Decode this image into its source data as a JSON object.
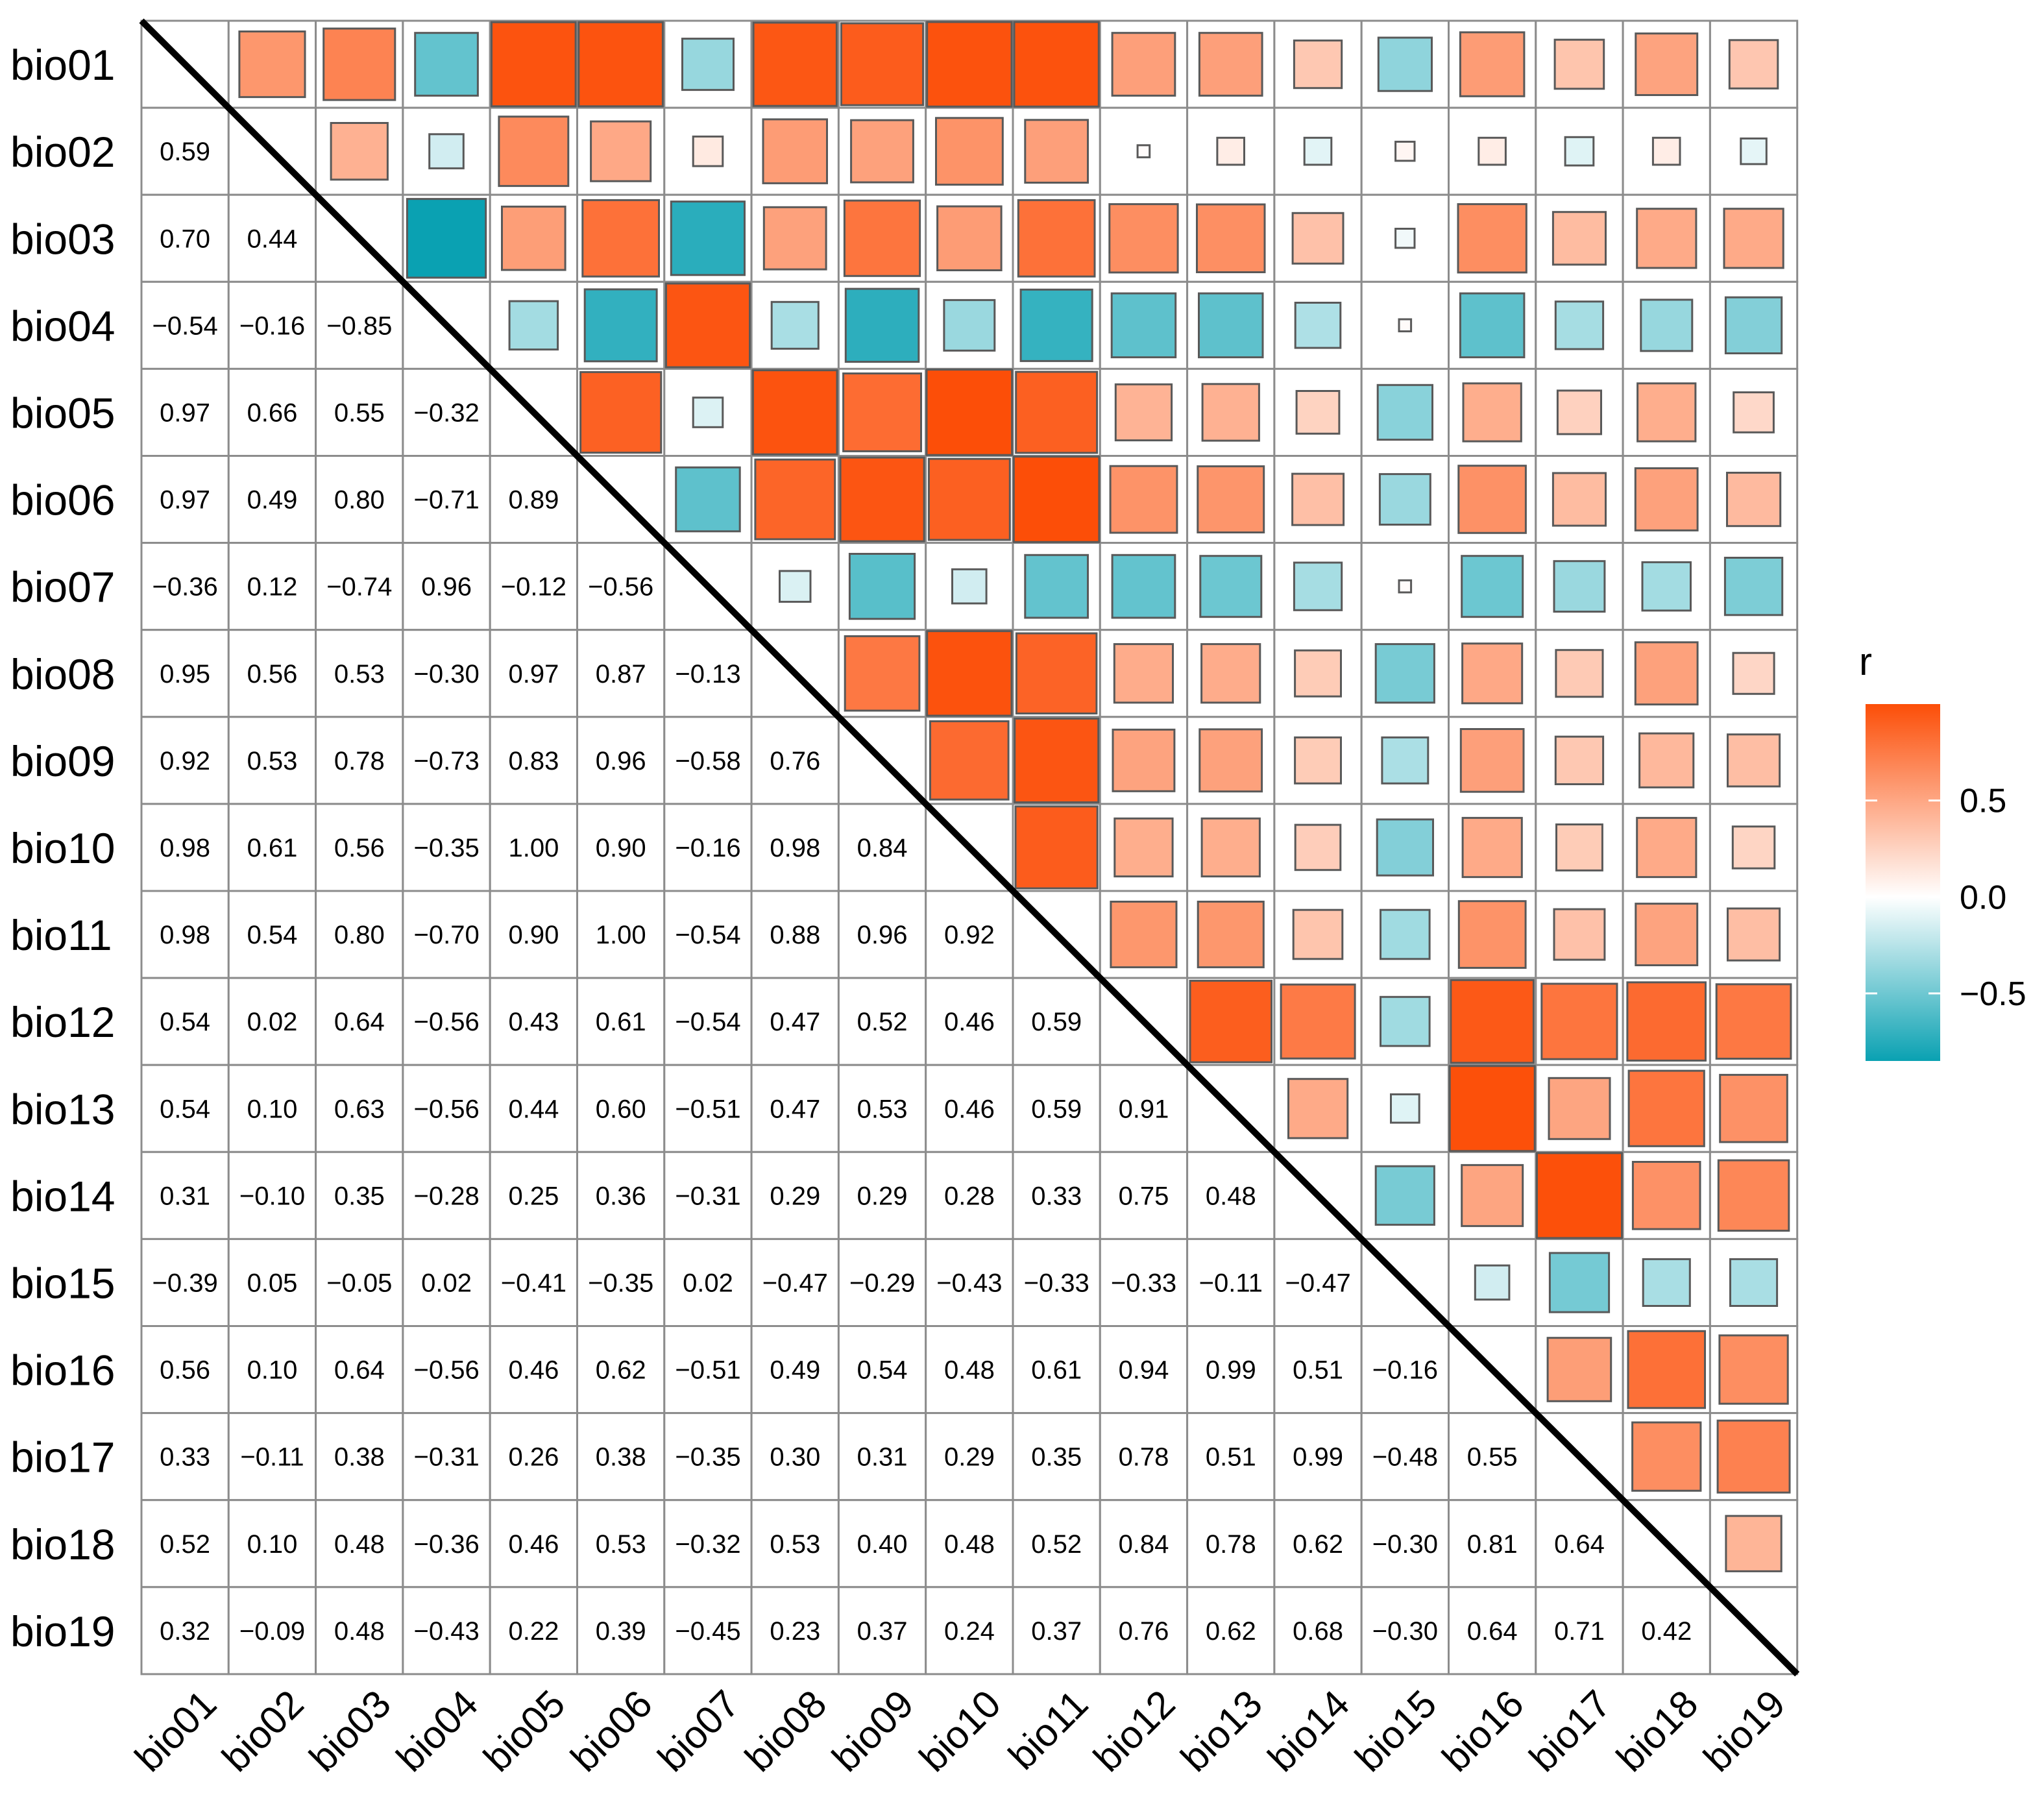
{
  "chart_data": {
    "type": "heatmap",
    "title": "",
    "variables": [
      "bio01",
      "bio02",
      "bio03",
      "bio04",
      "bio05",
      "bio06",
      "bio07",
      "bio08",
      "bio09",
      "bio10",
      "bio11",
      "bio12",
      "bio13",
      "bio14",
      "bio15",
      "bio16",
      "bio17",
      "bio18",
      "bio19"
    ],
    "lower_triangle_labels": [
      [],
      [
        "0.59"
      ],
      [
        "0.70",
        "0.44"
      ],
      [
        "−0.54",
        "−0.16",
        "−0.85"
      ],
      [
        "0.97",
        "0.66",
        "0.55",
        "−0.32"
      ],
      [
        "0.97",
        "0.49",
        "0.80",
        "−0.71",
        "0.89"
      ],
      [
        "−0.36",
        "0.12",
        "−0.74",
        "0.96",
        "−0.12",
        "−0.56"
      ],
      [
        "0.95",
        "0.56",
        "0.53",
        "−0.30",
        "0.97",
        "0.87",
        "−0.13"
      ],
      [
        "0.92",
        "0.53",
        "0.78",
        "−0.73",
        "0.83",
        "0.96",
        "−0.58",
        "0.76"
      ],
      [
        "0.98",
        "0.61",
        "0.56",
        "−0.35",
        "1.00",
        "0.90",
        "−0.16",
        "0.98",
        "0.84"
      ],
      [
        "0.98",
        "0.54",
        "0.80",
        "−0.70",
        "0.90",
        "1.00",
        "−0.54",
        "0.88",
        "0.96",
        "0.92"
      ],
      [
        "0.54",
        "0.02",
        "0.64",
        "−0.56",
        "0.43",
        "0.61",
        "−0.54",
        "0.47",
        "0.52",
        "0.46",
        "0.59"
      ],
      [
        "0.54",
        "0.10",
        "0.63",
        "−0.56",
        "0.44",
        "0.60",
        "−0.51",
        "0.47",
        "0.53",
        "0.46",
        "0.59",
        "0.91"
      ],
      [
        "0.31",
        "−0.10",
        "0.35",
        "−0.28",
        "0.25",
        "0.36",
        "−0.31",
        "0.29",
        "0.29",
        "0.28",
        "0.33",
        "0.75",
        "0.48"
      ],
      [
        "−0.39",
        "0.05",
        "−0.05",
        "0.02",
        "−0.41",
        "−0.35",
        "0.02",
        "−0.47",
        "−0.29",
        "−0.43",
        "−0.33",
        "−0.33",
        "−0.11",
        "−0.47"
      ],
      [
        "0.56",
        "0.10",
        "0.64",
        "−0.56",
        "0.46",
        "0.62",
        "−0.51",
        "0.49",
        "0.54",
        "0.48",
        "0.61",
        "0.94",
        "0.99",
        "0.51",
        "−0.16"
      ],
      [
        "0.33",
        "−0.11",
        "0.38",
        "−0.31",
        "0.26",
        "0.38",
        "−0.35",
        "0.30",
        "0.31",
        "0.29",
        "0.35",
        "0.78",
        "0.51",
        "0.99",
        "−0.48",
        "0.55"
      ],
      [
        "0.52",
        "0.10",
        "0.48",
        "−0.36",
        "0.46",
        "0.53",
        "−0.32",
        "0.53",
        "0.40",
        "0.48",
        "0.52",
        "0.84",
        "0.78",
        "0.62",
        "−0.30",
        "0.81",
        "0.64"
      ],
      [
        "0.32",
        "−0.09",
        "0.48",
        "−0.43",
        "0.22",
        "0.39",
        "−0.45",
        "0.23",
        "0.37",
        "0.24",
        "0.37",
        "0.76",
        "0.62",
        "0.68",
        "−0.30",
        "0.64",
        "0.71",
        "0.42"
      ]
    ],
    "upper_triangle": "squares sized and colored by r (mirror of lower triangle)",
    "legend": {
      "title": "r",
      "ticks": [
        "0.5",
        "0.0",
        "−0.5"
      ],
      "tick_values": [
        0.5,
        0.0,
        -0.5
      ],
      "range": [
        -0.85,
        1.0
      ],
      "placement": "right"
    },
    "colors": {
      "positive": "#FC4E08",
      "neutral": "#FFFFFF",
      "negative": "#0AA1B2",
      "grid": "#8C8C8C",
      "square_border": "#595959",
      "diagonal": "#000000"
    }
  }
}
